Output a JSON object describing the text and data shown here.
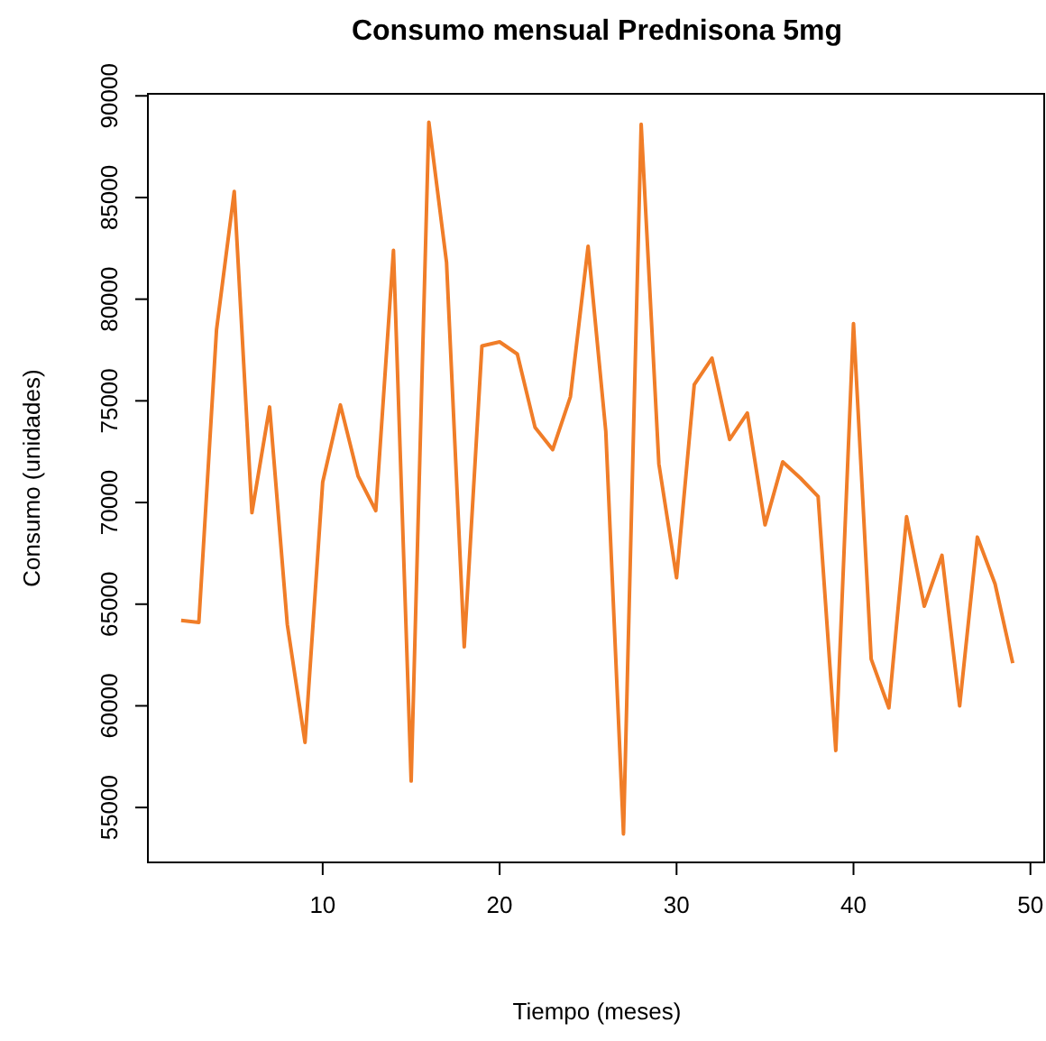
{
  "chart_data": {
    "type": "line",
    "title": "Consumo mensual Prednisona 5mg",
    "xlabel": "Tiempo (meses)",
    "ylabel": "Consumo (unidades)",
    "x": [
      2,
      3,
      4,
      5,
      6,
      7,
      8,
      9,
      10,
      11,
      12,
      13,
      14,
      15,
      16,
      17,
      18,
      19,
      20,
      21,
      22,
      23,
      24,
      25,
      26,
      27,
      28,
      29,
      30,
      31,
      32,
      33,
      34,
      35,
      36,
      37,
      38,
      39,
      40,
      41,
      42,
      43,
      44,
      45,
      46,
      47,
      48,
      49
    ],
    "series": [
      {
        "color": "#f07d28",
        "values": [
          64200,
          64100,
          78500,
          85300,
          69500,
          74700,
          64000,
          58200,
          71000,
          74800,
          71300,
          69600,
          82400,
          56300,
          88700,
          81800,
          62900,
          77700,
          77900,
          77300,
          73700,
          72600,
          75200,
          82600,
          73500,
          53700,
          88600,
          71900,
          66300,
          75800,
          77100,
          73100,
          74400,
          68900,
          72000,
          71200,
          70300,
          57800,
          78800,
          62300,
          59900,
          69300,
          64900,
          67400,
          60000,
          68300,
          66000,
          62100
        ]
      }
    ],
    "xlim": [
      0.12,
      50.88
    ],
    "xticks": [
      10,
      20,
      30,
      40,
      50
    ],
    "ylim": [
      52300,
      90100
    ],
    "yticks": [
      55000,
      60000,
      65000,
      70000,
      75000,
      80000,
      85000,
      90000
    ],
    "grid": false,
    "marker": "none",
    "line_style": "solid"
  }
}
